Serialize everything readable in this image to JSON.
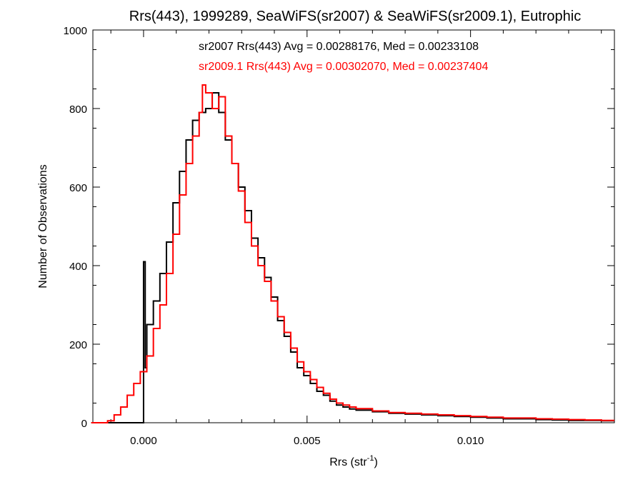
{
  "chart_data": {
    "type": "line",
    "title": "Rrs(443), 1999289, SeaWiFS(sr2007) & SeaWiFS(sr2009.1), Eutrophic",
    "xlabel": "Rrs (str",
    "xlabel_sup": "-1",
    "xlabel_end": ")",
    "ylabel": "Number of Observations",
    "xlim": [
      -0.00155,
      0.0144
    ],
    "ylim": [
      0,
      1000
    ],
    "x_ticks": [
      0.0,
      0.005,
      0.01
    ],
    "x_tick_labels": [
      "0.000",
      "0.005",
      "0.010"
    ],
    "y_ticks": [
      0,
      200,
      400,
      600,
      800,
      1000
    ],
    "y_tick_labels": [
      "0",
      "200",
      "400",
      "600",
      "800",
      "1000"
    ],
    "annotations": [
      "sr2007 Rrs(443) Avg = 0.00288176, Med = 0.00233108",
      "sr2009.1 Rrs(443) Avg = 0.00302070, Med = 0.00237404"
    ],
    "grid": false,
    "series": [
      {
        "color": "#000000",
        "x": [
          -0.0016,
          -0.0011,
          -0.0008,
          -0.0005,
          -0.0002,
          -2e-05,
          0.0,
          5e-05,
          0.0001,
          0.0003,
          0.0005,
          0.0007,
          0.0009,
          0.0011,
          0.0013,
          0.0015,
          0.0017,
          0.0019,
          0.0021,
          0.0023,
          0.0025,
          0.0027,
          0.0029,
          0.0031,
          0.0033,
          0.0035,
          0.0037,
          0.0039,
          0.0041,
          0.0043,
          0.0045,
          0.0047,
          0.0049,
          0.0051,
          0.0053,
          0.0055,
          0.0057,
          0.0059,
          0.0061,
          0.0063,
          0.0065,
          0.007,
          0.0075,
          0.008,
          0.0085,
          0.009,
          0.0095,
          0.01,
          0.0105,
          0.011,
          0.0115,
          0.012,
          0.0125,
          0.013,
          0.0135,
          0.014,
          0.0144
        ],
        "y": [
          0,
          0,
          0,
          0,
          0,
          0,
          410,
          140,
          250,
          310,
          380,
          460,
          560,
          640,
          720,
          770,
          790,
          800,
          840,
          790,
          720,
          660,
          600,
          540,
          470,
          420,
          370,
          320,
          260,
          220,
          180,
          140,
          120,
          100,
          80,
          70,
          55,
          45,
          40,
          35,
          32,
          28,
          24,
          22,
          20,
          18,
          16,
          14,
          12,
          10,
          10,
          8,
          7,
          6,
          6,
          5,
          5
        ]
      },
      {
        "color": "#ff0000",
        "x": [
          -0.0016,
          -0.0011,
          -0.0009,
          -0.0007,
          -0.0005,
          -0.0003,
          -0.0001,
          0.0001,
          0.0003,
          0.0005,
          0.0007,
          0.0009,
          0.0011,
          0.0013,
          0.0015,
          0.0017,
          0.0018,
          0.0019,
          0.0021,
          0.0023,
          0.0025,
          0.0027,
          0.0029,
          0.0031,
          0.0033,
          0.0035,
          0.0037,
          0.0039,
          0.0041,
          0.0043,
          0.0045,
          0.0047,
          0.0049,
          0.0051,
          0.0053,
          0.0055,
          0.0057,
          0.0059,
          0.0061,
          0.0063,
          0.0065,
          0.007,
          0.0075,
          0.008,
          0.0085,
          0.009,
          0.0095,
          0.01,
          0.0105,
          0.011,
          0.0115,
          0.012,
          0.0125,
          0.013,
          0.0135,
          0.014,
          0.0144
        ],
        "y": [
          0,
          5,
          20,
          40,
          70,
          100,
          130,
          170,
          240,
          300,
          380,
          480,
          580,
          660,
          730,
          790,
          860,
          840,
          800,
          830,
          730,
          660,
          590,
          510,
          450,
          400,
          360,
          310,
          270,
          230,
          190,
          155,
          130,
          110,
          90,
          75,
          60,
          50,
          45,
          40,
          36,
          30,
          26,
          24,
          22,
          20,
          18,
          16,
          14,
          12,
          12,
          10,
          9,
          8,
          7,
          6,
          6
        ]
      }
    ]
  }
}
